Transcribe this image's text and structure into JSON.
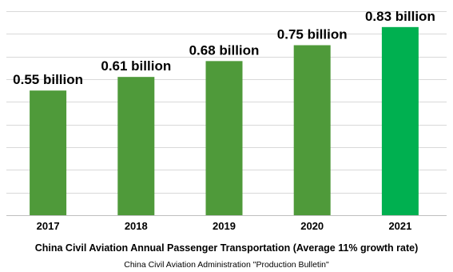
{
  "chart_data": {
    "type": "bar",
    "title": "China Civil Aviation Annual Passenger Transportation  (Average 11% growth rate)",
    "source": "China Civil Aviation Administration \"Production Bulletin\"",
    "xlabel": "",
    "ylabel": "",
    "unit": "billion",
    "categories": [
      "2017",
      "2018",
      "2019",
      "2020",
      "2021"
    ],
    "values": [
      0.55,
      0.61,
      0.68,
      0.75,
      0.83
    ],
    "data_labels": [
      "0.55 billion",
      "0.61 billion",
      "0.68 billion",
      "0.75 billion",
      "0.83 billion"
    ],
    "ylim": [
      0,
      0.9
    ],
    "grid": true,
    "legend": "none",
    "colors": {
      "bar": "#4f9a3a",
      "highlight_bar": "#00b050",
      "gridline": "#d9d9d9"
    },
    "highlight_index": 4
  }
}
